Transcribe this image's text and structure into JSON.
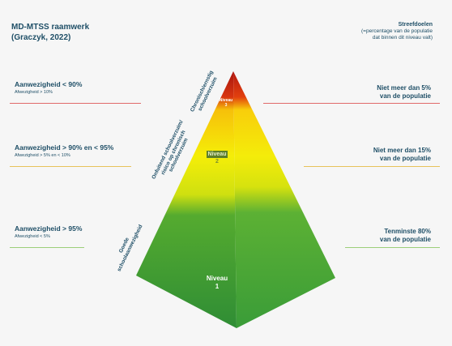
{
  "title": {
    "line1": "MD-MTSS raamwerk",
    "line2": "(Graczyk, 2022)"
  },
  "goal_header": {
    "heading": "Streefdoelen",
    "line1": "(=percentage van de populatie",
    "line2": "dat binnen dit niveau valt)"
  },
  "tiers": [
    {
      "attendance": "Aanwezigheid < 90%",
      "absence": "Afwezigheid > 10%",
      "goal_line1": "Niet meer dan 5%",
      "goal_line2": "van de populatie",
      "side_line1": "Chronisch/ernstig",
      "side_line2": "schoolverzuim",
      "level_label": "Niveau",
      "level_number": "3",
      "line_color": "#e06a6a"
    },
    {
      "attendance": "Aanwezigheid > 90% en < 95%",
      "absence": "Afwezigheid > 5% en < 10%",
      "goal_line1": "Niet meer dan 15%",
      "goal_line2": "van de populatie",
      "side_line1": "Onfuitend schoolverzuim/",
      "side_line2": "risico op chronisch",
      "side_line3": "schoolverzuim",
      "level_label": "Niveau",
      "level_number": "2",
      "line_color": "#e7c25a"
    },
    {
      "attendance": "Aanwezigheid > 95%",
      "absence": "Afwezigheid < 5%",
      "goal_line1": "Tenminste 80%",
      "goal_line2": "van de populatie",
      "side_line1": "Goede",
      "side_line2": "schoolaanwezigheid",
      "level_label": "Niveau",
      "level_number": "1",
      "line_color": "#9ccf7a"
    }
  ],
  "colors": {
    "red": "#b51d12",
    "yellow": "#f2ea07",
    "green": "#3aa531",
    "text": "#1f4f67"
  }
}
